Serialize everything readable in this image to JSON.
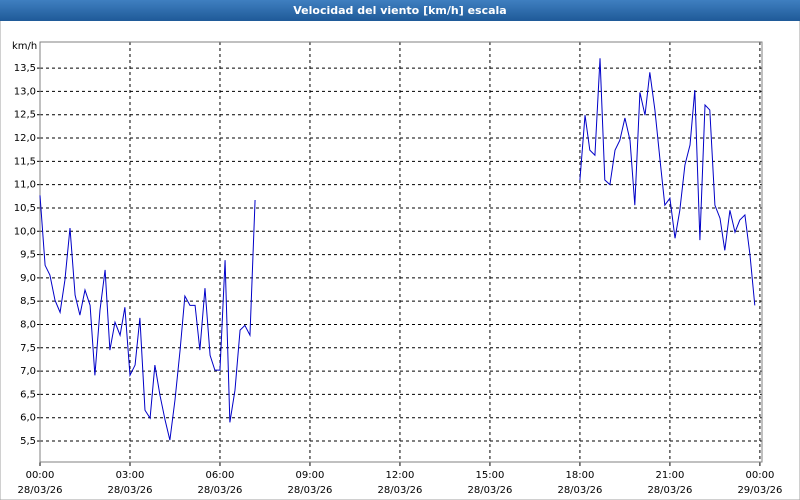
{
  "chart_data": {
    "type": "line",
    "title": "Velocidad del viento [km/h] escala",
    "ylabel": "km/h",
    "x": [
      0,
      0.17,
      0.33,
      0.5,
      0.67,
      0.83,
      1,
      1.17,
      1.33,
      1.5,
      1.67,
      1.83,
      2,
      2.17,
      2.33,
      2.5,
      2.67,
      2.83,
      3,
      3.17,
      3.33,
      3.5,
      3.67,
      3.83,
      4,
      4.17,
      4.33,
      4.5,
      4.67,
      4.83,
      5,
      5.17,
      5.33,
      5.5,
      5.67,
      5.83,
      6,
      6.17,
      6.33,
      6.5,
      6.67,
      6.83,
      7,
      7.17,
      12,
      18,
      18.17,
      18.33,
      18.5,
      18.67,
      18.83,
      19,
      19.17,
      19.33,
      19.5,
      19.67,
      19.83,
      20,
      20.17,
      20.33,
      20.5,
      20.67,
      20.83,
      21,
      21.17,
      21.33,
      21.5,
      21.67,
      21.83,
      22,
      22.17,
      22.33,
      22.5,
      22.67,
      22.83,
      23,
      23.17,
      23.33,
      23.5,
      23.67,
      23.83
    ],
    "series": [
      {
        "name": "Velocidad del viento",
        "color": "#0000c8",
        "values": [
          10.77,
          9.27,
          9.06,
          8.52,
          8.26,
          8.95,
          10.07,
          8.63,
          8.2,
          8.74,
          8.41,
          6.91,
          8.31,
          9.17,
          7.45,
          8.05,
          7.77,
          8.37,
          6.91,
          7.13,
          8.14,
          6.16,
          5.99,
          7.13,
          6.48,
          5.95,
          5.52,
          6.38,
          7.45,
          8.61,
          8.41,
          8.41,
          7.45,
          8.78,
          7.34,
          7.02,
          7.02,
          9.38,
          5.9,
          6.59,
          7.88,
          7.98,
          7.77,
          10.67,
          null,
          11.1,
          12.49,
          11.74,
          11.63,
          13.71,
          11.1,
          11.0,
          11.74,
          11.95,
          12.43,
          11.95,
          10.56,
          12.98,
          12.49,
          13.41,
          12.6,
          11.53,
          10.56,
          10.71,
          9.85,
          10.45,
          11.42,
          11.85,
          13.03,
          9.81,
          12.71,
          12.6,
          10.56,
          10.28,
          9.59,
          10.45,
          9.98,
          10.24,
          10.35,
          9.49,
          8.41
        ]
      }
    ],
    "xlim": [
      0,
      24.07
    ],
    "ylim": [
      5.05,
      14.06
    ],
    "xticks": [
      {
        "value": 0,
        "label": "00:00"
      },
      {
        "value": 3,
        "label": "03:00"
      },
      {
        "value": 6,
        "label": "06:00"
      },
      {
        "value": 9,
        "label": "09:00"
      },
      {
        "value": 12,
        "label": "12:00"
      },
      {
        "value": 15,
        "label": "15:00"
      },
      {
        "value": 18,
        "label": "18:00"
      },
      {
        "value": 21,
        "label": "21:00"
      },
      {
        "value": 24,
        "label": "00:00"
      }
    ],
    "xtick_dates": [
      "28/03/26",
      "28/03/26",
      "28/03/26",
      "28/03/26",
      "28/03/26",
      "28/03/26",
      "28/03/26",
      "28/03/26",
      "29/03/26"
    ],
    "yticks": [
      {
        "value": 5.5,
        "label": "5,5"
      },
      {
        "value": 6,
        "label": "6,0"
      },
      {
        "value": 6.5,
        "label": "6,5"
      },
      {
        "value": 7,
        "label": "7,0"
      },
      {
        "value": 7.5,
        "label": "7,5"
      },
      {
        "value": 8,
        "label": "8,0"
      },
      {
        "value": 8.5,
        "label": "8,5"
      },
      {
        "value": 9,
        "label": "9,0"
      },
      {
        "value": 9.5,
        "label": "9,5"
      },
      {
        "value": 10,
        "label": "10,0"
      },
      {
        "value": 10.5,
        "label": "10,5"
      },
      {
        "value": 11,
        "label": "11,0"
      },
      {
        "value": 11.5,
        "label": "11,5"
      },
      {
        "value": 12,
        "label": "12,0"
      },
      {
        "value": 12.5,
        "label": "12,5"
      },
      {
        "value": 13,
        "label": "13,0"
      },
      {
        "value": 13.5,
        "label": "13,5"
      }
    ],
    "grid": true
  }
}
